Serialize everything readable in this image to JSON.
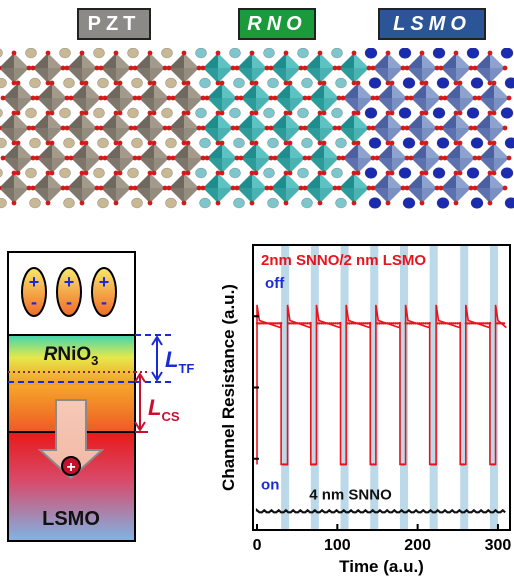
{
  "layer_tags": {
    "pzt": "PZT",
    "rno": "RNO",
    "lsmo": "LSMO",
    "colors": {
      "pzt_bg": "#8c8a87",
      "rno_bg": "#1a9a3a",
      "lsmo_bg": "#2b5597",
      "tag_text": "#ffffff"
    }
  },
  "schematic": {
    "dipole_plus": "+",
    "dipole_minus": "-",
    "layer_label_prefix": "R",
    "layer_label_main": "NiO",
    "layer_label_sub": "3",
    "bottom_label": "LSMO",
    "charge_symbol": "+",
    "ltf_main": "L",
    "ltf_sub": "TF",
    "lcs_main": "L",
    "lcs_sub": "CS",
    "colors": {
      "ltf": "#1a2bd6",
      "lcs": "#c8102e"
    }
  },
  "chart_data": {
    "type": "line",
    "xlabel": "Time (a.u.)",
    "ylabel": "Channel Resistance (a.u.)",
    "xlim": [
      -5,
      315
    ],
    "ylim": [
      0,
      1
    ],
    "x_ticks": [
      0,
      100,
      200,
      300
    ],
    "x_tick_labels": [
      "0",
      "100",
      "200",
      "300"
    ],
    "y_ticks": [
      0.25,
      0.5,
      0.75
    ],
    "annotations": {
      "top": "2nm SNNO/2 nm LSMO",
      "off": "off",
      "on": "on",
      "bottom": "4 nm SNNO"
    },
    "shaded_bands": [
      [
        30,
        40
      ],
      [
        67,
        77
      ],
      [
        104,
        114
      ],
      [
        141,
        151
      ],
      [
        178,
        188
      ],
      [
        215,
        225
      ],
      [
        253,
        263
      ],
      [
        290,
        300
      ]
    ],
    "series": [
      {
        "color": "#e8141c",
        "high_level": 0.73,
        "low_level": 0.23,
        "switch_up": [
          0,
          38,
          74,
          111,
          148,
          185,
          223,
          260,
          297
        ],
        "switch_down": [
          30,
          67,
          104,
          141,
          178,
          215,
          253,
          290
        ]
      },
      {
        "color": "#111111",
        "level": 0.065
      }
    ],
    "colors": {
      "band": "#bcd9ea"
    }
  }
}
